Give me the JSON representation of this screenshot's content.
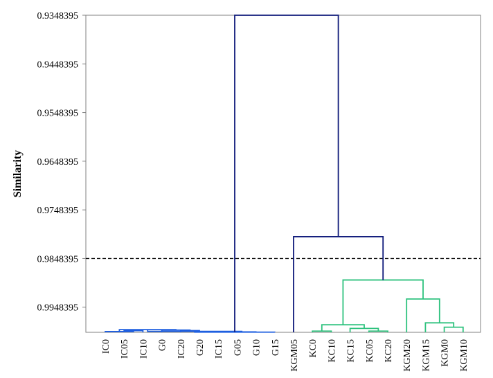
{
  "chart_data": {
    "type": "dendrogram",
    "ylabel": "Similarity",
    "yticks": [
      "0.9348395",
      "0.9448395",
      "0.9548395",
      "0.9648395",
      "0.9748395",
      "0.9848395",
      "0.9948395"
    ],
    "ylim": [
      0.9348395,
      1.0
    ],
    "y_inverted": true,
    "cut_line": 0.9848395,
    "leaves": [
      "IC0",
      "IC05",
      "IC10",
      "G0",
      "IC20",
      "G20",
      "IC15",
      "G05",
      "G10",
      "G15",
      "KGM05",
      "KC0",
      "KC10",
      "KC15",
      "KC05",
      "KC20",
      "KGM20",
      "KGM15",
      "KGM0",
      "KGM10"
    ],
    "colors": {
      "root": "#0f1a7a",
      "cluster1": "#1f5fe0",
      "cluster2": "#2ec27e",
      "cut_line": "#000000"
    },
    "merges": [
      {
        "left": 1,
        "right": 2,
        "height": 0.99965,
        "color": "cluster1"
      },
      {
        "left": 4,
        "right": 5,
        "height": 0.99965,
        "color": "cluster1"
      },
      {
        "left": 0,
        "right": "m0",
        "height": 0.99985,
        "color": "cluster1"
      },
      {
        "left": 3,
        "right": "m1",
        "height": 0.99955,
        "color": "cluster1"
      },
      {
        "left": "m2",
        "right": "m3",
        "height": 0.99945,
        "color": "cluster1"
      },
      {
        "left": 6,
        "right": 7,
        "height": 0.99985,
        "color": "cluster1"
      },
      {
        "left": "m5",
        "right": 8,
        "height": 0.99992,
        "color": "cluster1"
      },
      {
        "left": "m4",
        "right": "m6",
        "height": 0.9998,
        "color": "cluster1"
      },
      {
        "left": "m7",
        "right": 9,
        "height": 0.99996,
        "color": "cluster1"
      },
      {
        "left": 11,
        "right": 12,
        "height": 0.99975,
        "color": "cluster2"
      },
      {
        "left": 14,
        "right": 15,
        "height": 0.99975,
        "color": "cluster2"
      },
      {
        "left": 13,
        "right": "m10",
        "height": 0.9992,
        "color": "cluster2"
      },
      {
        "left": "m9",
        "right": "m11",
        "height": 0.99845,
        "color": "cluster2"
      },
      {
        "left": 18,
        "right": 19,
        "height": 0.99895,
        "color": "cluster2"
      },
      {
        "left": 17,
        "right": "m13",
        "height": 0.99805,
        "color": "cluster2"
      },
      {
        "left": 16,
        "right": "m14",
        "height": 0.99315,
        "color": "cluster2"
      },
      {
        "left": "m12",
        "right": "m15",
        "height": 0.98925,
        "color": "cluster2"
      },
      {
        "left": 10,
        "right": "m16",
        "height": 0.98035,
        "color": "root"
      },
      {
        "left": "m8",
        "right": "m17",
        "height": 0.9348395,
        "color": "root"
      }
    ]
  }
}
